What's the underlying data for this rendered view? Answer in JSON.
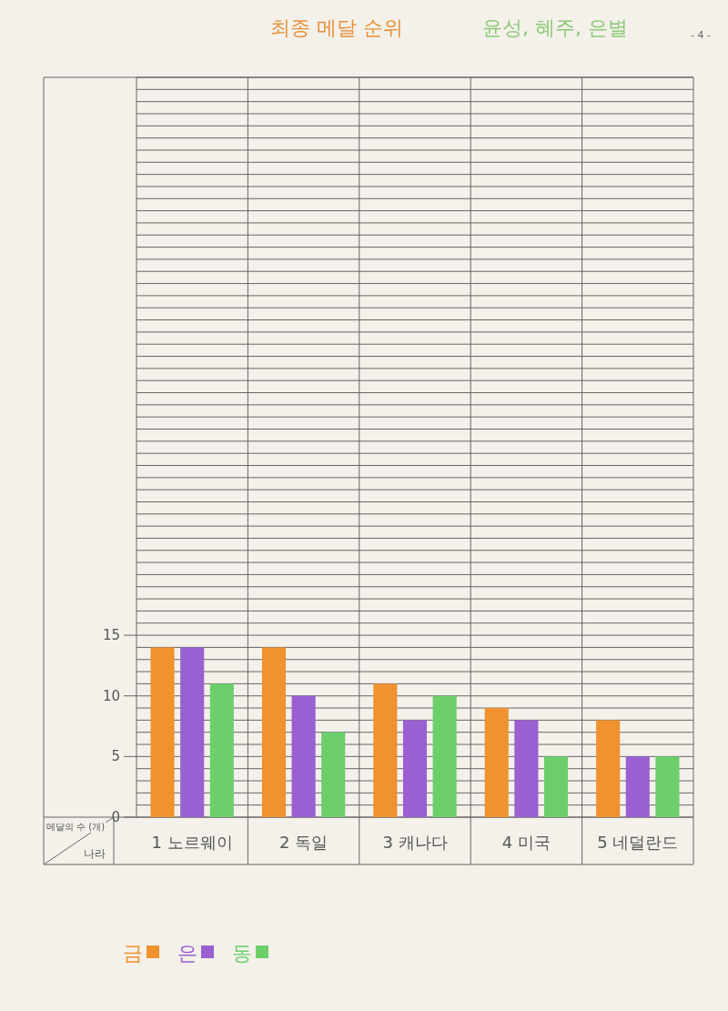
{
  "chart_data": {
    "type": "bar",
    "title": "최종 메달 순위",
    "ylabel": "메달의 수 (개)",
    "xlabel": "나라",
    "annotations": [
      "윤성, 혜주, 은별",
      "- 4 -"
    ],
    "categories": [
      "1 노르웨이",
      "2 독일",
      "3 캐나다",
      "4 미국",
      "5 네덜란드"
    ],
    "series": [
      {
        "name": "금",
        "color": "#f0922e",
        "values": [
          14,
          14,
          11,
          9,
          8
        ]
      },
      {
        "name": "은",
        "color": "#9a5fd0",
        "values": [
          14,
          10,
          8,
          8,
          5
        ]
      },
      {
        "name": "동",
        "color": "#6dcf6a",
        "values": [
          11,
          7,
          10,
          5,
          5
        ]
      }
    ],
    "ylim": [
      0,
      61
    ],
    "yticks": [
      0,
      {
        "value": 1,
        "label": null
      },
      {
        "value": 2,
        "label": null
      },
      {
        "value": 3,
        "label": null
      },
      {
        "value": 4,
        "label": null
      },
      5,
      {
        "value": 6,
        "label": null
      },
      {
        "value": 7,
        "label": null
      },
      {
        "value": 8,
        "label": null
      },
      {
        "value": 9,
        "label": null
      },
      10,
      {
        "value": 11,
        "label": null
      },
      {
        "value": 12,
        "label": null
      },
      {
        "value": 13,
        "label": null
      },
      {
        "value": 14,
        "label": null
      },
      15,
      {
        "value": 16,
        "label": null
      },
      {
        "value": 17,
        "label": null
      },
      {
        "value": 18,
        "label": null
      },
      {
        "value": 19,
        "label": null
      },
      {
        "value": 20,
        "label": null
      },
      {
        "value": 21,
        "label": null
      },
      {
        "value": 22,
        "label": null
      },
      {
        "value": 23,
        "label": null
      },
      {
        "value": 24,
        "label": null
      },
      {
        "value": 25,
        "label": null
      },
      {
        "value": 26,
        "label": null
      },
      {
        "value": 27,
        "label": null
      },
      {
        "value": 28,
        "label": null
      },
      {
        "value": 29,
        "label": null
      },
      {
        "value": 30,
        "label": null
      },
      {
        "value": 31,
        "label": null
      },
      {
        "value": 32,
        "label": null
      },
      {
        "value": 33,
        "label": null
      },
      {
        "value": 34,
        "label": null
      },
      {
        "value": 35,
        "label": null
      },
      {
        "value": 36,
        "label": null
      },
      {
        "value": 37,
        "label": null
      },
      {
        "value": 38,
        "label": null
      },
      {
        "value": 39,
        "label": null
      },
      {
        "value": 40,
        "label": null
      },
      {
        "value": 41,
        "label": null
      },
      {
        "value": 42,
        "label": null
      },
      {
        "value": 43,
        "label": null
      },
      {
        "value": 44,
        "label": null
      },
      {
        "value": 45,
        "label": null
      },
      {
        "value": 46,
        "label": null
      },
      {
        "value": 47,
        "label": null
      },
      {
        "value": 48,
        "label": null
      },
      {
        "value": 49,
        "label": null
      },
      {
        "value": 50,
        "label": null
      },
      {
        "value": 51,
        "label": null
      },
      {
        "value": 52,
        "label": null
      },
      {
        "value": 53,
        "label": null
      },
      {
        "value": 54,
        "label": null
      },
      {
        "value": 55,
        "label": null
      },
      {
        "value": 56,
        "label": null
      },
      {
        "value": 57,
        "label": null
      },
      {
        "value": 58,
        "label": null
      },
      {
        "value": 59,
        "label": null
      },
      {
        "value": 60,
        "label": null
      },
      {
        "value": 61,
        "label": null
      }
    ],
    "grid": "y",
    "legend": "bottom left"
  }
}
